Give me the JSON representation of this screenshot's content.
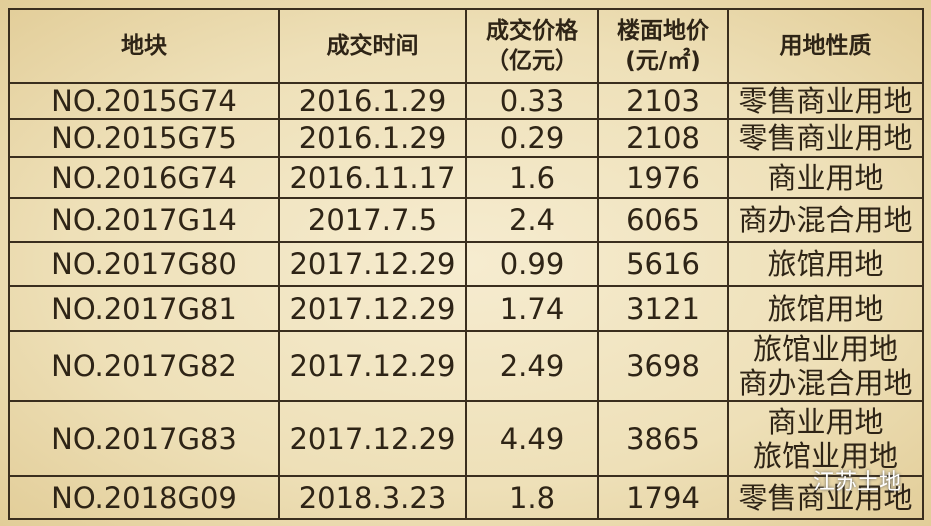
{
  "table": {
    "header": [
      "地块",
      "成交时间",
      [
        "成交价格",
        "（亿元）"
      ],
      [
        "楼面地价",
        "(元/㎡)"
      ],
      "用地性质"
    ],
    "rows": [
      [
        "NO.2015G74",
        "2016.1.29",
        0.33,
        2103,
        "零售商业用地"
      ],
      [
        "NO.2015G75",
        "2016.1.29",
        0.29,
        2108,
        "零售商业用地"
      ],
      [
        "NO.2016G74",
        "2016.11.17",
        1.6,
        1976,
        "商业用地"
      ],
      [
        "NO.2017G14",
        "2017.7.5",
        2.4,
        6065,
        "商办混合用地"
      ],
      [
        "NO.2017G80",
        "2017.12.29",
        0.99,
        5616,
        "旅馆用地"
      ],
      [
        "NO.2017G81",
        "2017.12.29",
        1.74,
        3121,
        "旅馆用地"
      ],
      [
        "NO.2017G82",
        "2017.12.29",
        2.49,
        3698,
        [
          "旅馆业用地",
          "商办混合用地"
        ]
      ],
      [
        "NO.2017G83",
        "2017.12.29",
        4.49,
        3865,
        [
          "商业用地",
          "旅馆业用地"
        ]
      ],
      [
        "NO.2018G09",
        "2018.3.23",
        1.8,
        1794,
        "零售商业用地"
      ]
    ]
  },
  "watermark": "江苏土地"
}
